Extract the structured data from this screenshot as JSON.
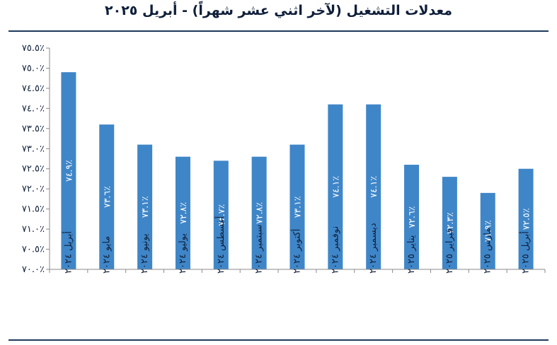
{
  "chart_data": {
    "type": "bar",
    "title": "معدلات التشغيل (لآخر اثني عشر شهراً) - أبريل ٢٠٢٥",
    "categories": [
      "أبريل ٢٠٢٤",
      "مايو ٢٠٢٤",
      "يونيو ٢٠٢٤",
      "يوليو ٢٠٢٤",
      "أغسطس ٢٠٢٤",
      "سبتمبر ٢٠٢٤",
      "أكتوبر ٢٠٢٤",
      "نوفمبر ٢٠٢٤",
      "ديسمبر ٢٠٢٤",
      "يناير ٢٠٢٥",
      "فبراير ٢٠٢٥",
      "مارس ٢٠٢٥",
      "أبريل ٢٠٢٥"
    ],
    "values": [
      74.9,
      73.6,
      73.1,
      72.8,
      72.7,
      72.8,
      73.1,
      74.1,
      74.1,
      72.6,
      72.3,
      71.9,
      72.5
    ],
    "value_labels": [
      "٧٤.٩٪",
      "٧٣.٦٪",
      "٧٣.١٪",
      "٧٢.٨٪",
      "٧٢.٧٪",
      "٧٢.٨٪",
      "٧٣.١٪",
      "٧٤.١٪",
      "٧٤.١٪",
      "٧٢.٦٪",
      "٧٢.٣٪",
      "٧١.٩٪",
      "٧٢.٥٪"
    ],
    "ylim": [
      70.0,
      75.5
    ],
    "yticks": [
      70.0,
      70.5,
      71.0,
      71.5,
      72.0,
      72.5,
      73.0,
      73.5,
      74.0,
      74.5,
      75.0,
      75.5
    ],
    "ytick_labels": [
      "٧٠.٠٪",
      "٧٠.٥٪",
      "٧١.٠٪",
      "٧١.٥٪",
      "٧٢.٠٪",
      "٧٢.٥٪",
      "٧٣.٠٪",
      "٧٣.٥٪",
      "٧٤.٠٪",
      "٧٤.٥٪",
      "٧٥.٠٪",
      "٧٥.٥٪"
    ],
    "bar_color": "#3f86c8",
    "grid": false
  },
  "colors": {
    "title": "#0f1f3a",
    "rule": "#1f3a5c",
    "axis": "#8a8a8a"
  }
}
